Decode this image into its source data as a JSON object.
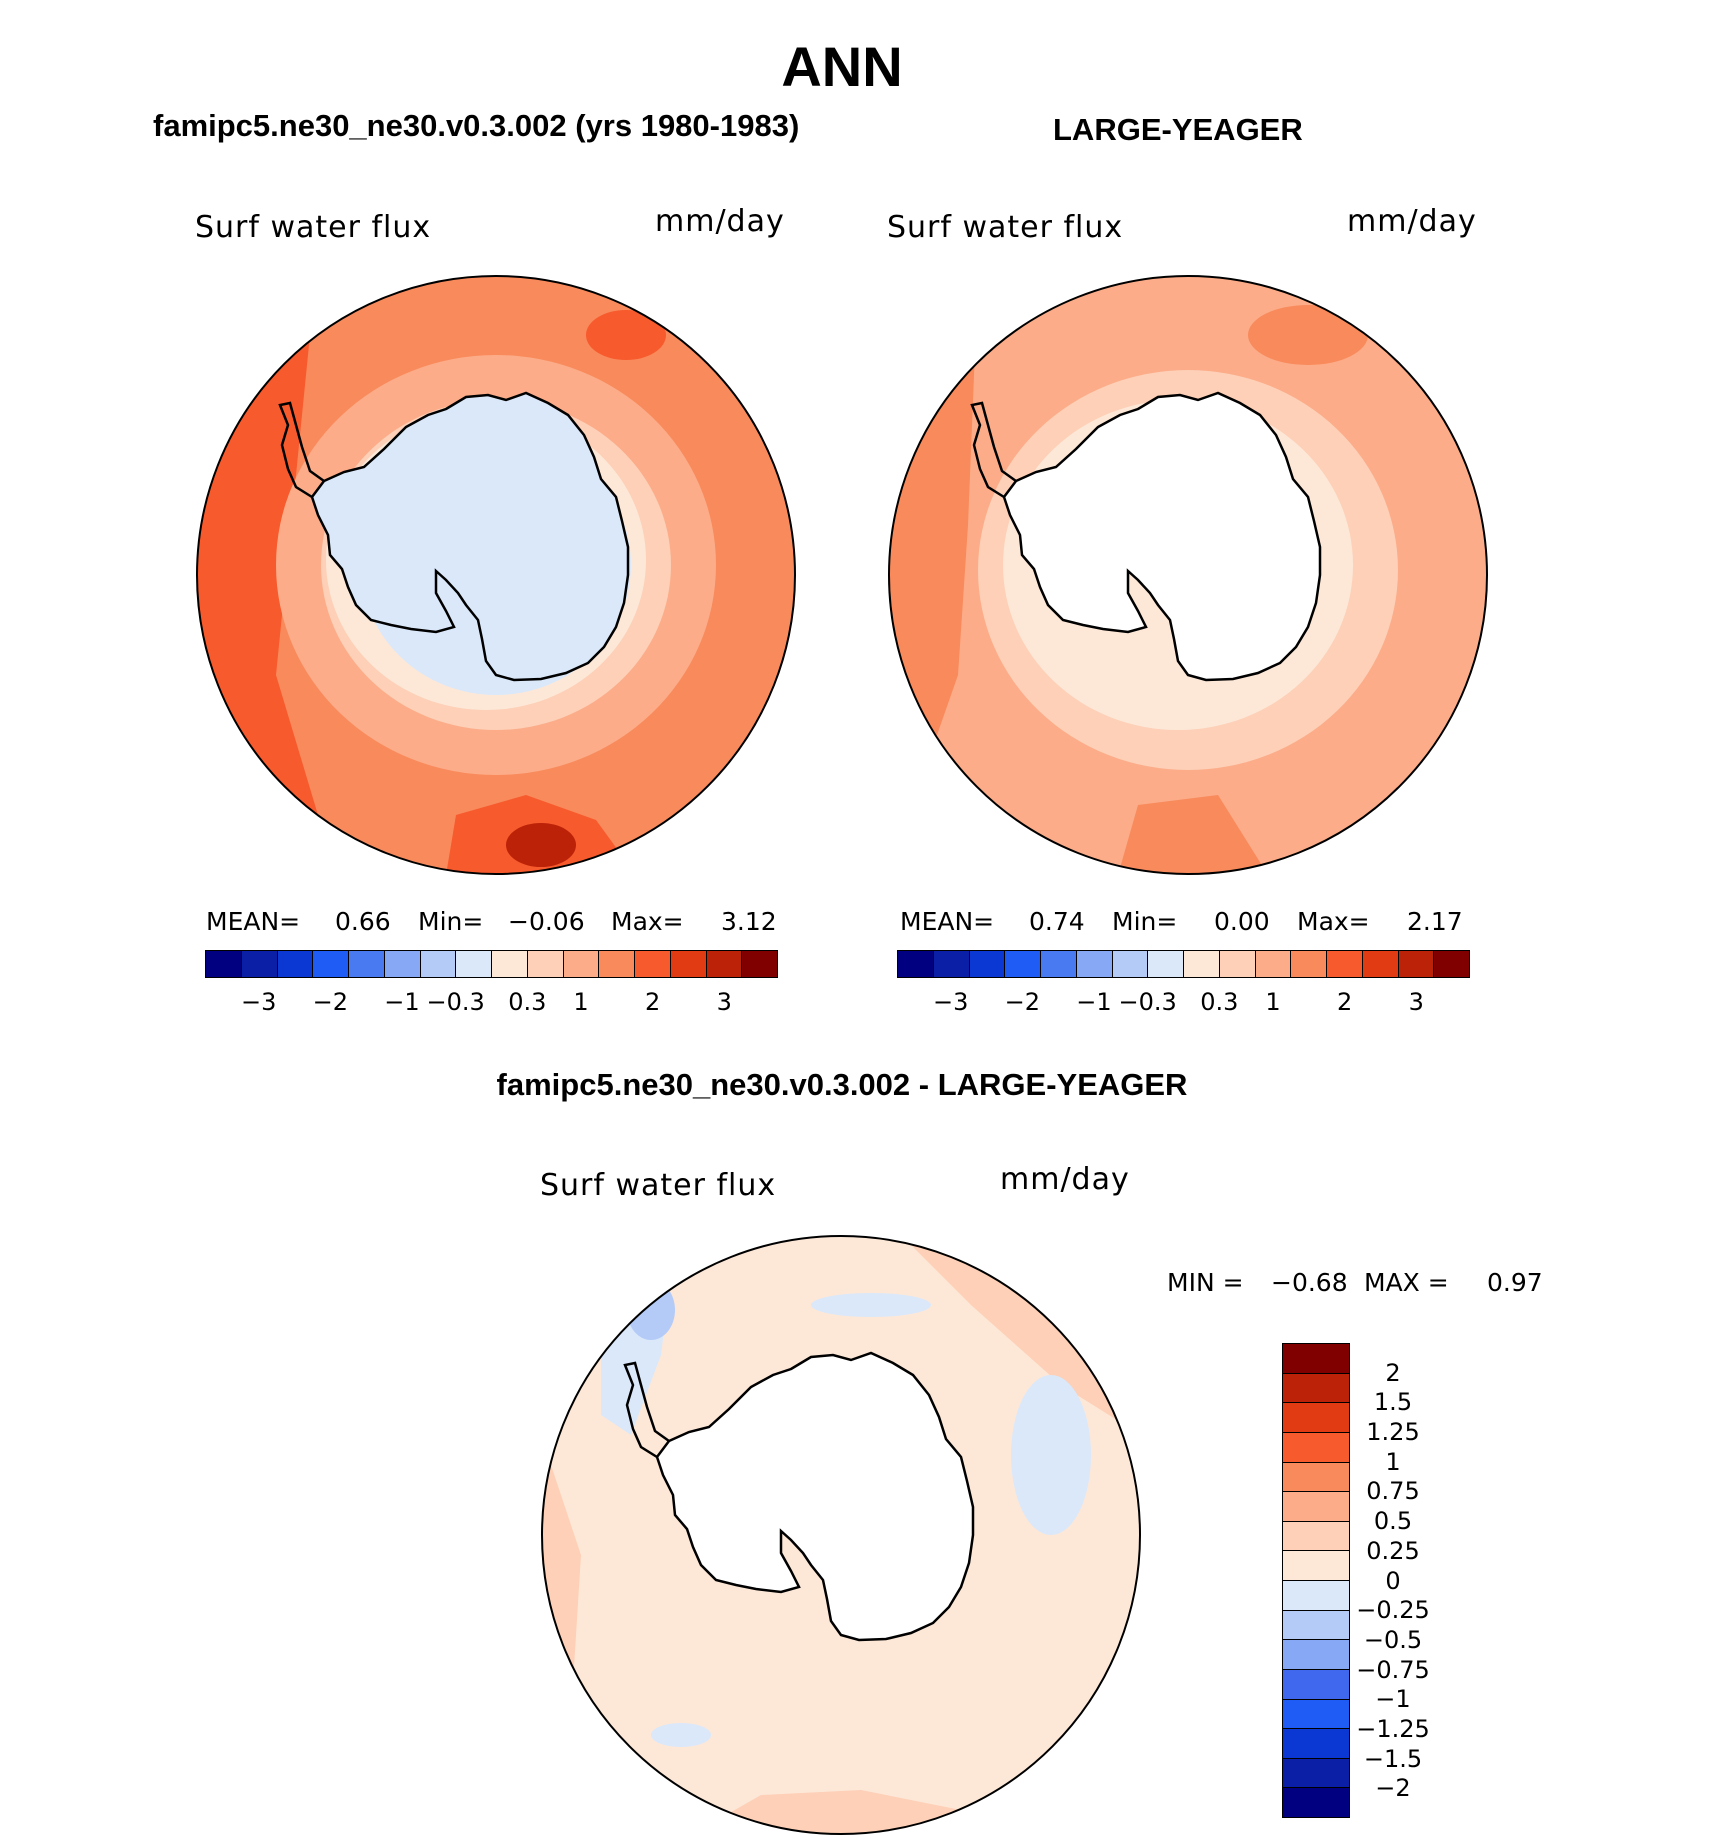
{
  "page_title": "ANN",
  "panels": [
    {
      "id": "model",
      "title": "famipc5.ne30_ne30.v0.3.002 (yrs 1980-1983)",
      "variable": "Surf water flux",
      "units": "mm/day",
      "stats": {
        "mean_label": "MEAN=",
        "mean": "0.66",
        "min_label": "Min=",
        "min": "−0.06",
        "max_label": "Max=",
        "max": "3.12"
      }
    },
    {
      "id": "obs",
      "title": "LARGE-YEAGER",
      "variable": "Surf water flux",
      "units": "mm/day",
      "stats": {
        "mean_label": "MEAN=",
        "mean": "0.74",
        "min_label": "Min=",
        "min": "0.00",
        "max_label": "Max=",
        "max": "2.17"
      }
    }
  ],
  "diff_panel": {
    "title": "famipc5.ne30_ne30.v0.3.002 - LARGE-YEAGER",
    "variable": "Surf water flux",
    "units": "mm/day",
    "stats": {
      "min_label": "MIN =",
      "min": "−0.68",
      "max_label": "MAX =",
      "max": "0.97"
    }
  },
  "colors": {
    "abs_scale": [
      "#000080",
      "#0a1fa6",
      "#0b37d2",
      "#1f5cf5",
      "#4a7af2",
      "#86a8f5",
      "#b4cbf7",
      "#dae8fa",
      "#fde8d8",
      "#fdd0b7",
      "#fcac88",
      "#f88a5c",
      "#f75a2c",
      "#e03b13",
      "#bb2208",
      "#800000"
    ],
    "diff_scale": [
      "#000080",
      "#0a1fa6",
      "#0b37d2",
      "#1f5cf5",
      "#3f68ee",
      "#86a8f5",
      "#b4cbf7",
      "#dae8fa",
      "#fde8d8",
      "#fdd0b7",
      "#fcac88",
      "#f88a5c",
      "#f75a2c",
      "#e03b13",
      "#bb2208",
      "#800000"
    ],
    "land": "#ffffff",
    "coast": "#000000"
  },
  "chart_data": [
    {
      "type": "heatmap",
      "projection": "south-polar-stereographic",
      "title": "famipc5.ne30_ne30.v0.3.002 (yrs 1980-1983)",
      "variable": "Surf water flux",
      "units": "mm/day",
      "contour_levels_labeled": [
        "−3",
        "−2",
        "−1",
        "−0.3",
        "0.3",
        "1",
        "2",
        "3"
      ],
      "mean": 0.66,
      "min": -0.06,
      "max": 3.12
    },
    {
      "type": "heatmap",
      "projection": "south-polar-stereographic",
      "title": "LARGE-YEAGER",
      "variable": "Surf water flux",
      "units": "mm/day",
      "contour_levels_labeled": [
        "−3",
        "−2",
        "−1",
        "−0.3",
        "0.3",
        "1",
        "2",
        "3"
      ],
      "mean": 0.74,
      "min": 0.0,
      "max": 2.17
    },
    {
      "type": "heatmap",
      "projection": "south-polar-stereographic",
      "title": "famipc5.ne30_ne30.v0.3.002 - LARGE-YEAGER",
      "variable": "Surf water flux",
      "units": "mm/day",
      "contour_levels": [
        "2",
        "1.5",
        "1.25",
        "1",
        "0.75",
        "0.5",
        "0.25",
        "0",
        "−0.25",
        "−0.5",
        "−0.75",
        "−1",
        "−1.25",
        "−1.5",
        "−2"
      ],
      "min": -0.68,
      "max": 0.97
    }
  ],
  "colorbar_ticks": [
    "−3",
    "−2",
    "−1",
    "−0.3",
    "0.3",
    "1",
    "2",
    "3"
  ],
  "diff_colorbar_ticks": [
    "2",
    "1.5",
    "1.25",
    "1",
    "0.75",
    "0.5",
    "0.25",
    "0",
    "−0.25",
    "−0.5",
    "−0.75",
    "−1",
    "−1.25",
    "−1.5",
    "−2"
  ]
}
